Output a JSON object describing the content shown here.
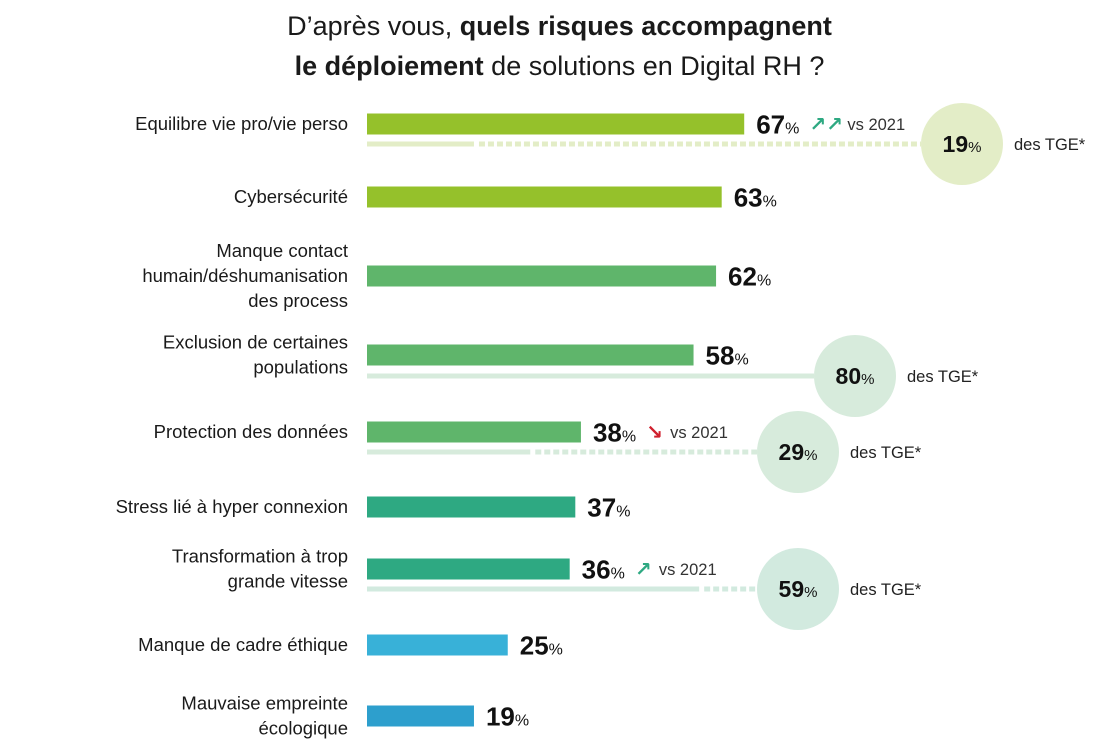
{
  "title": {
    "line1_regular": "D’après vous, ",
    "line1_bold": "quels risques accompagnent",
    "line2_bold": "le déploiement",
    "line2_regular": " de solutions en Digital RH ?"
  },
  "chart_data": {
    "type": "bar",
    "orientation": "horizontal",
    "title": "D’après vous, quels risques accompagnent le déploiement de solutions en Digital RH ?",
    "xlim": [
      0,
      100
    ],
    "grid": false,
    "percent_suffix": "%",
    "series": [
      {
        "categories": [
          [
            "Equilibre vie pro/vie perso"
          ],
          [
            "Cybersécurité"
          ],
          [
            "Manque contact",
            "humain/déshumanisation",
            "des process"
          ],
          [
            "Exclusion de certaines",
            "populations"
          ],
          [
            "Protection  des données"
          ],
          [
            "Stress lié à hyper connexion"
          ],
          [
            "Transformation à trop",
            "grande vitesse"
          ],
          [
            "Manque de cadre éthique"
          ],
          [
            "Mauvaise empreinte",
            "écologique"
          ]
        ],
        "values": [
          67,
          63,
          62,
          58,
          38,
          37,
          36,
          25,
          19
        ],
        "colors": [
          "#95c12b",
          "#95c12b",
          "#5fb56b",
          "#5fb56b",
          "#5fb56b",
          "#2ea982",
          "#2ea982",
          "#38b1d8",
          "#2d9fcd"
        ]
      }
    ],
    "trends": [
      {
        "index": 0,
        "arrow": "↗↗",
        "text": "vs 2021",
        "color": "#2ea982"
      },
      {
        "index": 4,
        "arrow": "↘",
        "text": "vs 2021",
        "color": "#d0202e"
      },
      {
        "index": 6,
        "arrow": "↗",
        "text": "vs 2021",
        "color": "#2ea982"
      }
    ],
    "tge": [
      {
        "index": 0,
        "value": 19,
        "label": "des TGE*",
        "circle_color": "#e3edc7",
        "line_color": "#e3edc7"
      },
      {
        "index": 3,
        "value": 80,
        "label": "des TGE*",
        "circle_color": "#d7ebdc",
        "line_color": "#d7ebdc"
      },
      {
        "index": 4,
        "value": 29,
        "label": "des TGE*",
        "circle_color": "#d7ebdc",
        "line_color": "#d7ebdc"
      },
      {
        "index": 6,
        "value": 59,
        "label": "des TGE*",
        "circle_color": "#d2eadf",
        "line_color": "#d2eadf"
      }
    ]
  }
}
